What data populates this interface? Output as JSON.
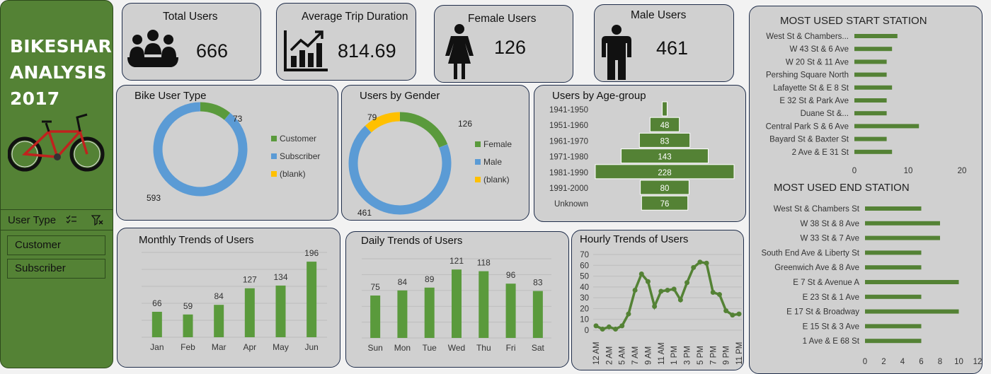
{
  "sidebar": {
    "title_lines": [
      "BIKESHARE",
      "ANALYSIS",
      "2017"
    ],
    "slicer_title": "User Type",
    "slicer_items": [
      "Customer",
      "Subscriber"
    ]
  },
  "kpis": {
    "total_users": {
      "label": "Total Users",
      "value": "666"
    },
    "avg_trip": {
      "label": "Average Trip Duration",
      "value": "814.69"
    },
    "female": {
      "label": "Female Users",
      "value": "126"
    },
    "male": {
      "label": "Male Users",
      "value": "461"
    }
  },
  "colors": {
    "green": "#5a9a3c",
    "blue": "#5b9bd5",
    "yellow": "#ffc000",
    "dark_green": "#548235"
  },
  "charts": {
    "user_type": {
      "title": "Bike User Type",
      "type": "pie",
      "slices": [
        {
          "name": "Customer",
          "value": 73
        },
        {
          "name": "Subscriber",
          "value": 593
        },
        {
          "name": "(blank)",
          "value": 0
        }
      ],
      "legend": "right"
    },
    "gender": {
      "title": "Users by Gender",
      "type": "pie",
      "slices": [
        {
          "name": "Female",
          "value": 126
        },
        {
          "name": "Male",
          "value": 461
        },
        {
          "name": "(blank)",
          "value": 79
        }
      ],
      "legend": "right"
    },
    "age": {
      "title": "Users by Age-group",
      "type": "bar",
      "categories": [
        "1941-1950",
        "1951-1960",
        "1961-1970",
        "1971-1980",
        "1981-1990",
        "1991-2000",
        "Unknown"
      ],
      "values": [
        8,
        48,
        83,
        143,
        228,
        80,
        76
      ],
      "labels": [
        "",
        "48",
        "83",
        "143",
        "228",
        "80",
        "76"
      ]
    },
    "start_station": {
      "title": "MOST USED START STATION",
      "type": "bar",
      "categories": [
        "West St & Chambers...",
        "W 43 St & 6 Ave",
        "W 20 St & 11 Ave",
        "Pershing Square North",
        "Lafayette St & E 8 St",
        "E 32 St & Park Ave",
        "Duane St &...",
        "Central Park S & 6 Ave",
        "Bayard St & Baxter St",
        "2 Ave & E 31 St"
      ],
      "values": [
        8,
        7,
        6,
        6,
        7,
        6,
        6,
        12,
        6,
        7
      ],
      "xlim": [
        0,
        20
      ],
      "xticks": [
        "0",
        "10",
        "20"
      ]
    },
    "end_station": {
      "title": "MOST USED END STATION",
      "type": "bar",
      "categories": [
        "West St & Chambers St",
        "W 38 St & 8 Ave",
        "W 33 St & 7 Ave",
        "South End Ave & Liberty St",
        "Greenwich Ave & 8 Ave",
        "E 7 St & Avenue A",
        "E 23 St & 1 Ave",
        "E 17 St & Broadway",
        "E 15 St & 3 Ave",
        "1 Ave & E 68 St"
      ],
      "values": [
        6,
        8,
        8,
        6,
        6,
        10,
        6,
        10,
        6,
        6
      ],
      "xlim": [
        0,
        12
      ],
      "xticks": [
        "0",
        "2",
        "4",
        "6",
        "8",
        "10",
        "12"
      ]
    },
    "monthly": {
      "title": "Monthly Trends of Users",
      "type": "bar",
      "categories": [
        "Jan",
        "Feb",
        "Mar",
        "Apr",
        "May",
        "Jun"
      ],
      "values": [
        66,
        59,
        84,
        127,
        134,
        196
      ],
      "ylim": [
        0,
        220
      ]
    },
    "daily": {
      "title": "Daily Trends of Users",
      "type": "bar",
      "categories": [
        "Sun",
        "Mon",
        "Tue",
        "Wed",
        "Thu",
        "Fri",
        "Sat"
      ],
      "values": [
        75,
        84,
        89,
        121,
        118,
        96,
        83
      ],
      "ylim": [
        0,
        140
      ]
    },
    "hourly": {
      "title": "Hourly Trends of Users",
      "type": "line",
      "values": [
        4,
        1,
        3,
        1,
        4,
        15,
        37,
        52,
        45,
        22,
        36,
        37,
        38,
        28,
        44,
        58,
        63,
        62,
        35,
        33,
        18,
        14,
        15
      ],
      "yticks": [
        "0",
        "10",
        "20",
        "30",
        "40",
        "50",
        "60",
        "70"
      ],
      "ylim": [
        0,
        70
      ],
      "xticks": [
        "12 AM",
        "2 AM",
        "5 AM",
        "7 AM",
        "9 AM",
        "11 AM",
        "1 PM",
        "3 PM",
        "5 PM",
        "7 PM",
        "9 PM",
        "11 PM"
      ],
      "xtick_idx": [
        0,
        2,
        4,
        6,
        8,
        10,
        12,
        14,
        16,
        18,
        20,
        22
      ]
    }
  }
}
